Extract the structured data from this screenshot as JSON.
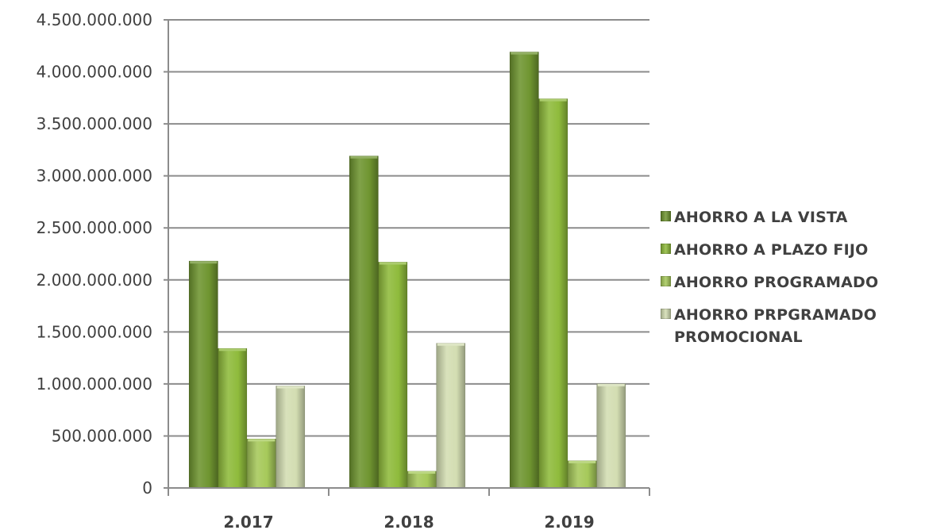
{
  "chart_data": {
    "type": "bar",
    "categories": [
      "2.017",
      "2.018",
      "2.019"
    ],
    "series": [
      {
        "name": "AHORRO A LA VISTA",
        "color": "#6f9530",
        "values": [
          2180000000,
          3190000000,
          4190000000
        ]
      },
      {
        "name": "AHORRO A PLAZO FIJO",
        "color": "#8fbb3c",
        "values": [
          1340000000,
          2170000000,
          3740000000
        ]
      },
      {
        "name": "AHORRO PROGRAMADO",
        "color": "#a6c95a",
        "values": [
          470000000,
          160000000,
          260000000
        ]
      },
      {
        "name": "AHORRO PRPGRAMADO PROMOCIONAL",
        "color": "#d3ddb2",
        "values": [
          980000000,
          1390000000,
          1000000000
        ]
      }
    ],
    "y_tick_labels": [
      "0",
      "500.000.000",
      "1.000.000.000",
      "1.500.000.000",
      "2.000.000.000",
      "2.500.000.000",
      "3.000.000.000",
      "3.500.000.000",
      "4.000.000.000",
      "4.500.000.000"
    ],
    "ylim": [
      0,
      4500000000
    ],
    "grid": true,
    "legend_position": "right"
  }
}
